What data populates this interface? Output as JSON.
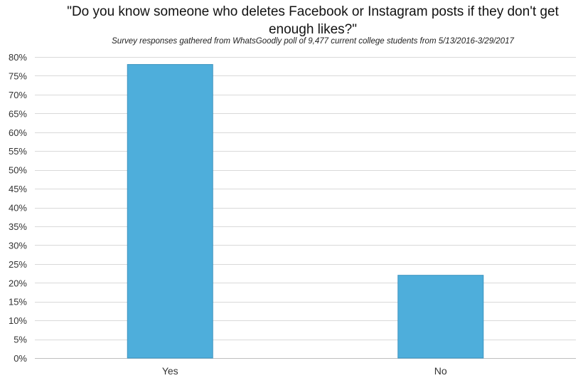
{
  "chart_data": {
    "type": "bar",
    "title": "\"Do you know someone who deletes Facebook or Instagram posts if they don't get enough likes?\"",
    "subtitle": "Survey responses gathered from WhatsGoodly poll of 9,477 current college students from 5/13/2016-3/29/2017",
    "categories": [
      "Yes",
      "No"
    ],
    "values": [
      78,
      22
    ],
    "ylim": [
      0,
      80
    ],
    "yticks": [
      0,
      5,
      10,
      15,
      20,
      25,
      30,
      35,
      40,
      45,
      50,
      55,
      60,
      65,
      70,
      75,
      80
    ],
    "ytick_suffix": "%",
    "xlabel": "",
    "ylabel": "",
    "grid": true,
    "legend": "none",
    "colors": {
      "bar_fill": "#4eaedb",
      "bar_stroke": "#3d94c0",
      "grid": "#d9d9d9",
      "axis": "#bfbfbf"
    }
  }
}
